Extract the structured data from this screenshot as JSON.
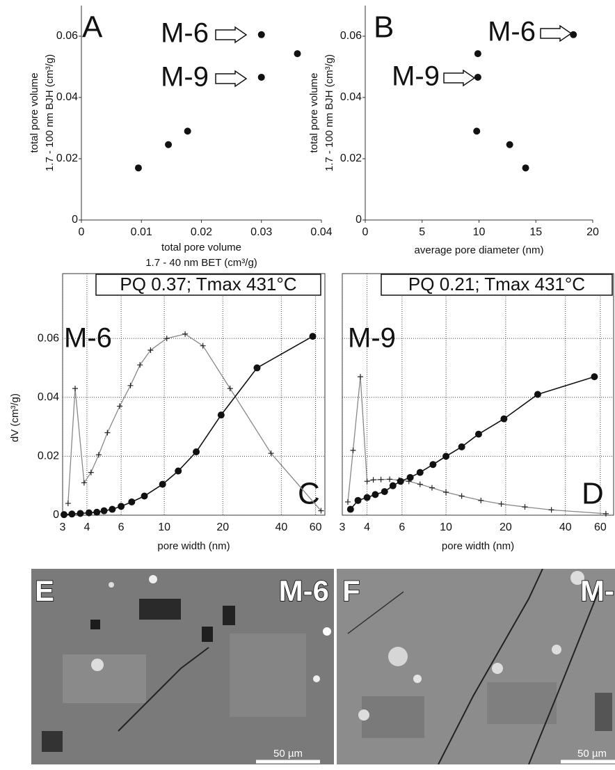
{
  "chart_data": [
    {
      "type": "scatter",
      "panel_label": "A",
      "annotations": [
        "M-6",
        "M-9"
      ],
      "xlabel": [
        "total pore volume",
        "1.7 - 40 nm BET (cm³/g)"
      ],
      "ylabel": [
        "total pore volume",
        "1.7 - 100 nm BJH (cm³/g)"
      ],
      "xlim": [
        0,
        0.04
      ],
      "ylim": [
        0,
        0.07
      ],
      "xticks": [
        0,
        0.01,
        0.02,
        0.03,
        0.04
      ],
      "yticks": [
        0,
        0.02,
        0.04,
        0.06
      ],
      "color": "#111",
      "x": [
        0.0095,
        0.0145,
        0.0177,
        0.03,
        0.03,
        0.036
      ],
      "values": [
        0.017,
        0.0246,
        0.029,
        0.0605,
        0.0466,
        0.0543
      ]
    },
    {
      "type": "scatter",
      "panel_label": "B",
      "annotations": [
        "M-6",
        "M-9"
      ],
      "xlabel": "average pore diameter (nm)",
      "ylabel": [
        "total pore volume",
        "1.7 - 100 nm BJH (cm³/g)"
      ],
      "xlim": [
        0,
        20
      ],
      "ylim": [
        0,
        0.07
      ],
      "xticks": [
        0,
        5,
        10,
        15,
        20
      ],
      "yticks": [
        0,
        0.02,
        0.04,
        0.06
      ],
      "color": "#111",
      "x": [
        14.1,
        12.7,
        9.8,
        9.9,
        9.9,
        18.3
      ],
      "values": [
        0.017,
        0.0246,
        0.029,
        0.0466,
        0.0543,
        0.0605
      ]
    },
    {
      "type": "line",
      "panel_label": "C",
      "box_label": "PQ 0.37; Tmax 431°C",
      "annotations": [
        "M-6"
      ],
      "xlabel": "pore width (nm)",
      "ylabel": "dV (cm³/g)",
      "xscale": "log",
      "grid": true,
      "show_ytick_labels": true,
      "xlim": [
        3,
        67
      ],
      "ylim": [
        0,
        0.082
      ],
      "xticks": [
        3,
        4,
        6,
        10,
        20,
        40,
        60
      ],
      "yticks": [
        0,
        0.02,
        0.04,
        0.06
      ],
      "series": [
        {
          "color": "#888",
          "marker": "cross",
          "x": [
            3.2,
            3.48,
            3.87,
            4.2,
            4.6,
            5.1,
            5.9,
            6.7,
            7.5,
            8.5,
            10.3,
            12.8,
            15.8,
            21.8,
            35.4,
            64
          ],
          "values": [
            0.004,
            0.043,
            0.011,
            0.0145,
            0.0205,
            0.028,
            0.037,
            0.044,
            0.051,
            0.056,
            0.06,
            0.0615,
            0.0575,
            0.043,
            0.021,
            0.0015
          ]
        },
        {
          "color": "#111",
          "marker": "dot",
          "x": [
            3.05,
            3.35,
            3.7,
            4.1,
            4.5,
            4.9,
            5.4,
            6.0,
            6.8,
            7.9,
            9.8,
            11.8,
            14.6,
            19.6,
            30,
            58
          ],
          "values": [
            0.0002,
            0.0004,
            0.0006,
            0.0008,
            0.001,
            0.0015,
            0.002,
            0.003,
            0.0045,
            0.0065,
            0.0105,
            0.015,
            0.0215,
            0.034,
            0.05,
            0.0607
          ]
        }
      ]
    },
    {
      "type": "line",
      "panel_label": "D",
      "box_label": "PQ 0.21; Tmax 431°C",
      "annotations": [
        "M-9"
      ],
      "xlabel": "pore width (nm)",
      "xscale": "log",
      "grid": true,
      "show_ytick_labels": false,
      "xlim": [
        3,
        70
      ],
      "ylim": [
        0,
        0.082
      ],
      "xticks": [
        3,
        4,
        6,
        10,
        20,
        40,
        60
      ],
      "yticks": [
        0,
        0.02,
        0.04,
        0.06
      ],
      "series": [
        {
          "color": "#888",
          "marker": "cross",
          "x": [
            3.2,
            3.4,
            3.7,
            4.0,
            4.3,
            4.7,
            5.2,
            5.8,
            6.5,
            7.4,
            8.5,
            10,
            12,
            15,
            19,
            25,
            34,
            64
          ],
          "values": [
            0.0045,
            0.022,
            0.047,
            0.0115,
            0.012,
            0.0121,
            0.0122,
            0.0119,
            0.0115,
            0.0105,
            0.0093,
            0.0078,
            0.0065,
            0.005,
            0.0038,
            0.0028,
            0.0018,
            0.0005
          ]
        },
        {
          "color": "#111",
          "marker": "dot",
          "x": [
            3.3,
            3.6,
            4.0,
            4.4,
            4.9,
            5.4,
            5.9,
            6.6,
            7.4,
            8.6,
            10.0,
            12.0,
            14.6,
            19.6,
            29,
            56
          ],
          "values": [
            0.002,
            0.005,
            0.006,
            0.007,
            0.008,
            0.01,
            0.0115,
            0.0128,
            0.0145,
            0.0172,
            0.02,
            0.0232,
            0.0275,
            0.0327,
            0.041,
            0.047
          ]
        }
      ]
    }
  ],
  "images": [
    {
      "label": "E",
      "sample": "M-6",
      "scale": "50 µm"
    },
    {
      "label": "F",
      "sample": "M-",
      "scale": "50 µm"
    }
  ]
}
